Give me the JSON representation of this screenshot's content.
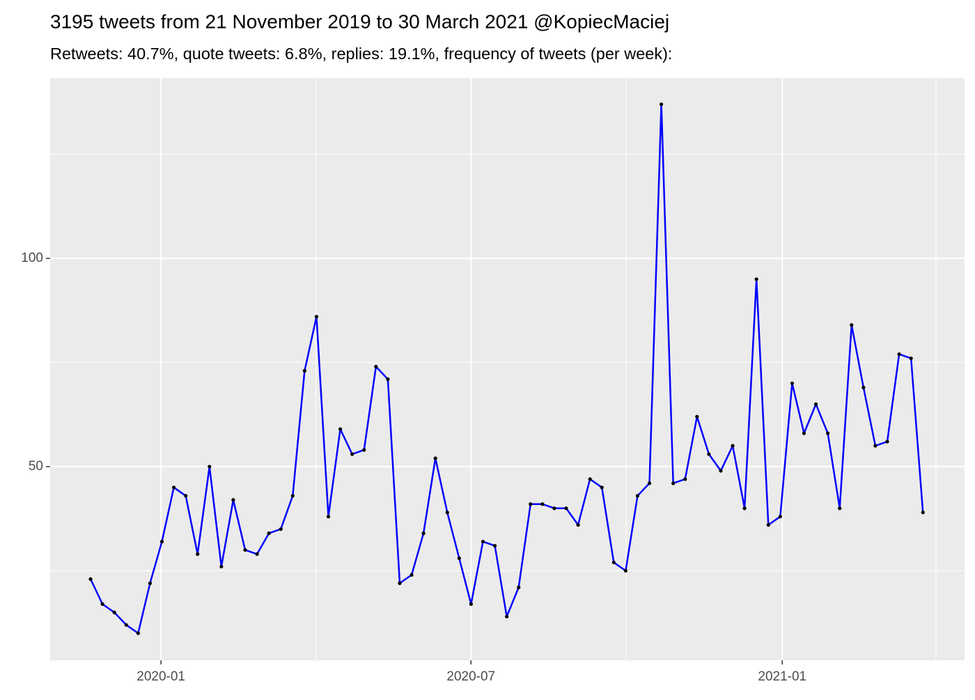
{
  "chart_data": {
    "type": "line",
    "title": "3195 tweets from 21 November 2019 to 30 March 2021 @KopiecMaciej",
    "subtitle": "Retweets: 40.7%, quote tweets: 6.8%, replies: 19.1%, frequency of tweets (per week):",
    "categories": [
      null,
      null,
      null,
      null,
      null,
      null,
      null,
      null,
      null,
      null,
      null,
      null,
      null,
      null,
      null,
      null,
      null,
      null,
      null,
      null,
      null,
      null,
      null,
      null,
      null,
      null,
      null,
      null,
      null,
      null,
      null,
      null,
      null,
      null,
      null,
      null,
      null,
      null,
      null,
      null,
      null,
      null,
      null,
      null,
      null,
      null,
      null,
      null,
      null,
      null,
      null,
      null,
      null,
      null,
      null,
      null,
      null,
      null,
      null,
      null,
      null,
      null,
      null,
      null,
      null,
      null,
      null,
      null,
      null,
      null,
      null
    ],
    "values": [
      23,
      17,
      15,
      12,
      10,
      22,
      32,
      45,
      43,
      29,
      50,
      26,
      42,
      30,
      29,
      34,
      35,
      43,
      73,
      86,
      38,
      59,
      53,
      54,
      74,
      71,
      22,
      24,
      34,
      52,
      39,
      28,
      17,
      32,
      31,
      14,
      21,
      41,
      41,
      40,
      40,
      36,
      47,
      45,
      27,
      25,
      43,
      46,
      137,
      46,
      47,
      62,
      53,
      49,
      55,
      40,
      95,
      36,
      38,
      70,
      58,
      65,
      58,
      40,
      84,
      69,
      55,
      56,
      77,
      76,
      39
    ],
    "color": "#0000ff",
    "point_color": "#000000",
    "xlim": [
      -3.4,
      73.5
    ],
    "xticks": [
      {
        "value": 5.92,
        "label": "2020-01"
      },
      {
        "value": 31.99,
        "label": "2020-07"
      },
      {
        "value": 58.17,
        "label": "2021-01"
      }
    ],
    "ylim": [
      3.5,
      143.3
    ],
    "yticks": [
      50,
      100
    ],
    "grid": true
  }
}
